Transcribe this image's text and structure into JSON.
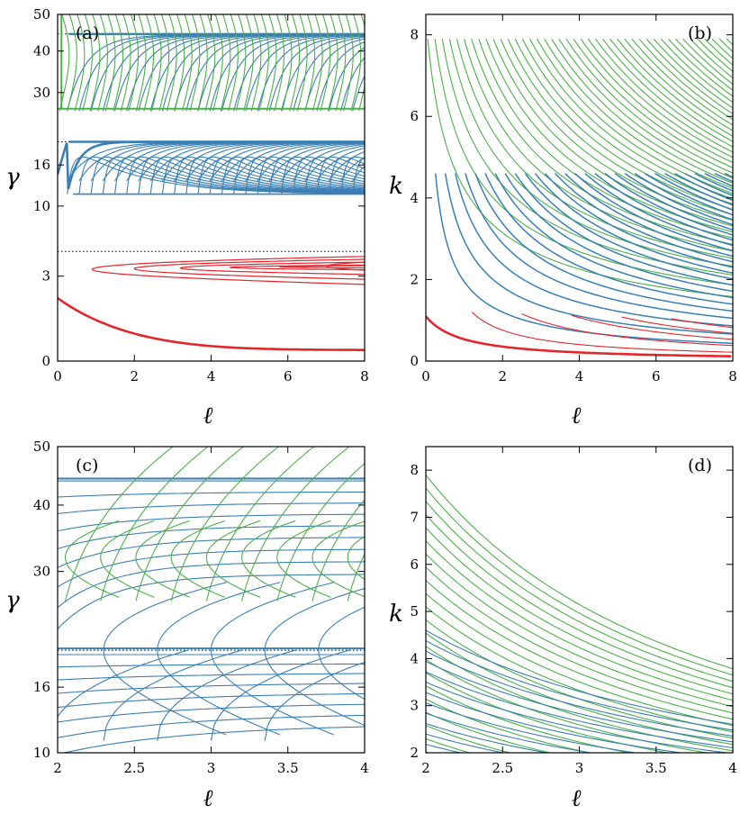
{
  "colors": {
    "red": "#e3262c",
    "blue": "#3a7fb5",
    "green": "#4caf48"
  },
  "chart_data": [
    {
      "type": "line",
      "panel_label": "(a)",
      "xlabel": "ℓ",
      "ylabel": "γ",
      "xlim": [
        0,
        8
      ],
      "ylim": [
        0,
        50
      ],
      "xticks": [
        0,
        2,
        4,
        6,
        8
      ],
      "yticks": [
        0,
        3,
        10,
        16,
        30,
        40,
        50
      ],
      "yscale": "nonlinear (sqrt-like)",
      "dotted_reference_lines_y": [
        5,
        20,
        44.5
      ],
      "series": [
        {
          "color": "red",
          "bands": "0–5",
          "description_y_range": [
            0,
            5
          ]
        },
        {
          "color": "blue",
          "bands": "11–44.5",
          "description_y_range": [
            11,
            44.5
          ]
        },
        {
          "color": "green",
          "bands": "26–50",
          "description_y_range": [
            26,
            50
          ]
        }
      ],
      "grid": false
    },
    {
      "type": "line",
      "panel_label": "(b)",
      "xlabel": "ℓ",
      "ylabel": "k",
      "xlim": [
        0,
        8
      ],
      "ylim": [
        0,
        8.5
      ],
      "xticks": [
        0,
        2,
        4,
        6,
        8
      ],
      "yticks": [
        0,
        2,
        4,
        6,
        8
      ],
      "series": [
        {
          "color": "red",
          "description_y_range": [
            0,
            1.1
          ]
        },
        {
          "color": "blue",
          "description_y_range": [
            0.3,
            4.6
          ]
        },
        {
          "color": "green",
          "description_y_range": [
            1.2,
            7.9
          ]
        }
      ],
      "grid": false
    },
    {
      "type": "line",
      "panel_label": "(c)",
      "xlabel": "ℓ",
      "ylabel": "γ",
      "xlim": [
        2,
        4
      ],
      "ylim": [
        10,
        50
      ],
      "xticks": [
        2,
        2.5,
        3,
        3.5,
        4
      ],
      "yticks": [
        10,
        16,
        30,
        40,
        50
      ],
      "dotted_reference_lines_y": [
        20,
        44.5
      ],
      "series": [
        {
          "color": "blue",
          "description_y_range": [
            11,
            44.5
          ]
        },
        {
          "color": "green",
          "description_y_range": [
            26,
            50
          ]
        }
      ],
      "grid": false
    },
    {
      "type": "line",
      "panel_label": "(d)",
      "xlabel": "ℓ",
      "ylabel": "k",
      "xlim": [
        2,
        4
      ],
      "ylim": [
        2,
        8.5
      ],
      "xticks": [
        2,
        2.5,
        3,
        3.5,
        4
      ],
      "yticks": [
        2,
        3,
        4,
        5,
        6,
        7,
        8
      ],
      "series": [
        {
          "color": "blue",
          "description_y_range": [
            2,
            4.6
          ]
        },
        {
          "color": "green",
          "description_y_range": [
            2,
            7.9
          ]
        }
      ],
      "grid": false
    }
  ]
}
